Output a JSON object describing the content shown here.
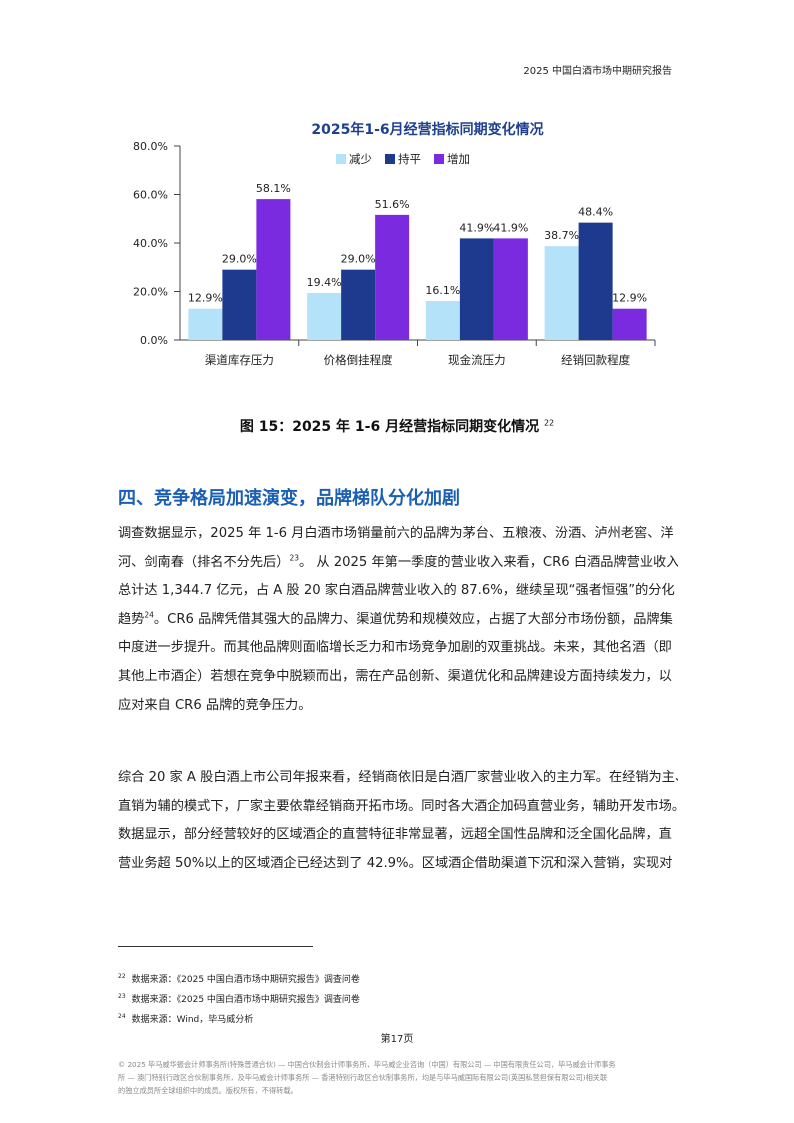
{
  "header": {
    "title": "2025 中国白酒市场中期研究报告"
  },
  "chart_data": {
    "type": "bar",
    "title": "2025年1-6月经营指标同期变化情况",
    "categories": [
      "渠道库存压力",
      "价格倒挂程度",
      "现金流压力",
      "经销回款程度"
    ],
    "series": [
      {
        "name": "减少",
        "color": "#b4e2f8",
        "values": [
          12.9,
          19.4,
          16.1,
          38.7
        ],
        "labels": [
          "12.9%",
          "19.4%",
          "16.1%",
          "38.7%"
        ]
      },
      {
        "name": "持平",
        "color": "#1e3a8f",
        "values": [
          29.0,
          29.0,
          41.9,
          48.4
        ],
        "labels": [
          "29.0%",
          "29.0%",
          "41.9%",
          "48.4%"
        ]
      },
      {
        "name": "增加",
        "color": "#7a2be0",
        "values": [
          58.1,
          51.6,
          41.9,
          12.9
        ],
        "labels": [
          "58.1%",
          "51.6%",
          "41.9%",
          "12.9%"
        ]
      }
    ],
    "ylim": [
      0,
      80
    ],
    "yticks": [
      "0.0%",
      "20.0%",
      "40.0%",
      "60.0%",
      "80.0%"
    ],
    "legend": "top-center",
    "grid": false
  },
  "caption": {
    "text": "图 15：2025 年 1-6 月经营指标同期变化情况",
    "ref": "22"
  },
  "section": {
    "title": "四、竞争格局加速演变，品牌梯队分化加剧"
  },
  "para1": {
    "l1": "调查数据显示，2025 年 1-6 月白酒市场销量前六的品牌为茅台、五粮液、汾酒、泸州老窖、洋",
    "l2a": "河、剑南春（排名不分先后）",
    "l2ref": "23",
    "l2b": "。 从 2025 年第一季度的营业收入来看，CR6 白酒品牌营业收入",
    "l3": "总计达 1,344.7 亿元，占 A 股 20 家白酒品牌营业收入的 87.6%，继续呈现“强者恒强”的分化",
    "l4a": "趋势",
    "l4ref": "24",
    "l4b": "。CR6 品牌凭借其强大的品牌力、渠道优势和规模效应，占据了大部分市场份额，品牌集",
    "l5": "中度进一步提升。而其他品牌则面临增长乏力和市场竞争加剧的双重挑战。未来，其他名酒（即",
    "l6": "其他上市酒企）若想在竞争中脱颖而出，需在产品创新、渠道优化和品牌建设方面持续发力，以",
    "l7": "应对来自 CR6 品牌的竞争压力。"
  },
  "para2": {
    "l1": "综合 20 家 A 股白酒上市公司年报来看，经销商依旧是白酒厂家营业收入的主力军。在经销为主、",
    "l2": "直销为辅的模式下，厂家主要依靠经销商开拓市场。同时各大酒企加码直营业务，辅助开发市场。",
    "l3": "数据显示，部分经营较好的区域酒企的直营特征非常显著，远超全国性品牌和泛全国化品牌，直",
    "l4": "营业务超 50%以上的区域酒企已经达到了 42.9%。区域酒企借助渠道下沉和深入营销，实现对"
  },
  "footnotes": [
    {
      "ref": "22",
      "text": "数据来源：《2025 中国白酒市场中期研究报告》调查问卷"
    },
    {
      "ref": "23",
      "text": "数据来源：《2025 中国白酒市场中期研究报告》调查问卷"
    },
    {
      "ref": "24",
      "text": "数据来源：Wind，毕马威分析"
    }
  ],
  "page": {
    "label": "第17页"
  },
  "legal": {
    "l1": "© 2025 毕马威华振会计师事务所(特殊普通合伙) — 中国合伙制会计师事务所，毕马威企业咨询（中国）有限公司 — 中国有限责任公司，毕马威会计师事务",
    "l2": "所 — 澳门特别行政区合伙制事务所，及毕马威会计师事务所 — 香港特别行政区合伙制事务所，均是与毕马威国际有限公司(英国私营担保有限公司)相关联",
    "l3": "的独立成员所全球组织中的成员。版权所有，不得转载。"
  }
}
